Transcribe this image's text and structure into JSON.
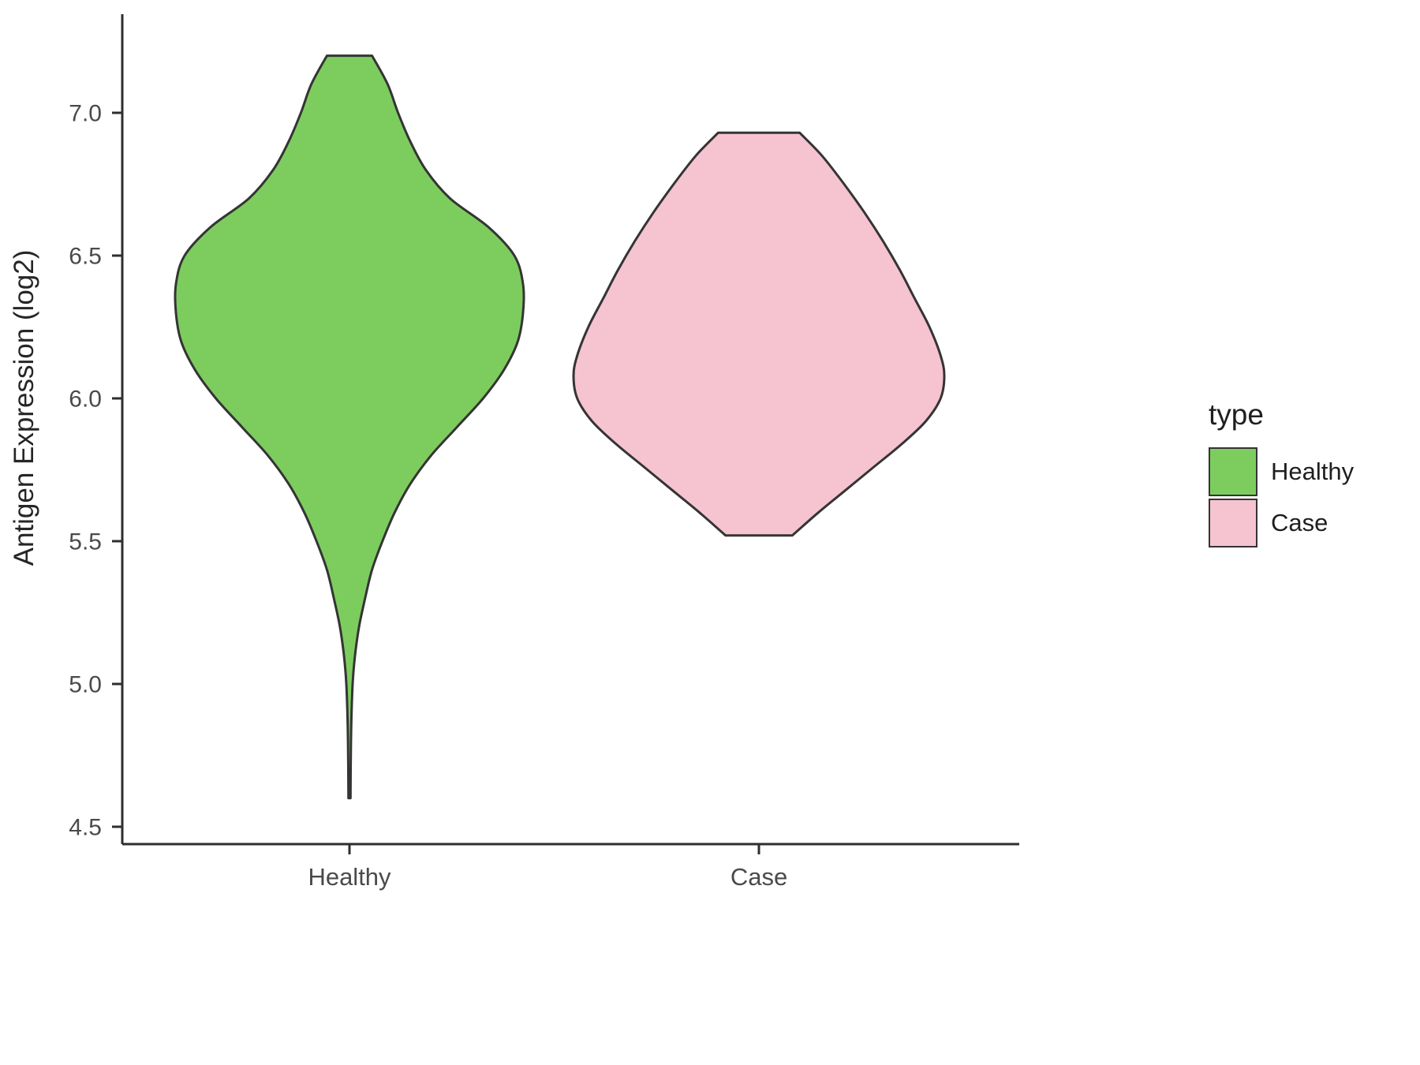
{
  "chart_data": {
    "type": "violin",
    "title": "",
    "xlabel": "",
    "ylabel": "Antigen Expression (log2)",
    "categories": [
      "Healthy",
      "Case"
    ],
    "ylim": [
      4.4,
      7.3
    ],
    "grid": false,
    "legend": {
      "title": "type",
      "position": "right",
      "entries": [
        {
          "label": "Healthy",
          "color": "#7DCD5E"
        },
        {
          "label": "Case",
          "color": "#F6C3D0"
        }
      ]
    },
    "y_ticks": [
      {
        "v": 4.5,
        "label": "4.5"
      },
      {
        "v": 5.0,
        "label": "5.0"
      },
      {
        "v": 5.5,
        "label": "5.5"
      },
      {
        "v": 6.0,
        "label": "6.0"
      },
      {
        "v": 6.5,
        "label": "6.5"
      },
      {
        "v": 7.0,
        "label": "7.0"
      }
    ],
    "series": [
      {
        "name": "Healthy",
        "fill": "#7DCD5E",
        "range": [
          4.6,
          7.2
        ],
        "peak_value": 6.35,
        "profile": [
          {
            "v": 7.2,
            "w": 0.13
          },
          {
            "v": 7.1,
            "w": 0.22
          },
          {
            "v": 7.0,
            "w": 0.28
          },
          {
            "v": 6.9,
            "w": 0.35
          },
          {
            "v": 6.8,
            "w": 0.44
          },
          {
            "v": 6.7,
            "w": 0.58
          },
          {
            "v": 6.6,
            "w": 0.8
          },
          {
            "v": 6.5,
            "w": 0.95
          },
          {
            "v": 6.4,
            "w": 1.0
          },
          {
            "v": 6.3,
            "w": 1.0
          },
          {
            "v": 6.2,
            "w": 0.97
          },
          {
            "v": 6.1,
            "w": 0.89
          },
          {
            "v": 6.0,
            "w": 0.77
          },
          {
            "v": 5.9,
            "w": 0.62
          },
          {
            "v": 5.8,
            "w": 0.47
          },
          {
            "v": 5.7,
            "w": 0.35
          },
          {
            "v": 5.6,
            "w": 0.26
          },
          {
            "v": 5.5,
            "w": 0.19
          },
          {
            "v": 5.4,
            "w": 0.13
          },
          {
            "v": 5.3,
            "w": 0.09
          },
          {
            "v": 5.2,
            "w": 0.055
          },
          {
            "v": 5.1,
            "w": 0.032
          },
          {
            "v": 5.0,
            "w": 0.018
          },
          {
            "v": 4.85,
            "w": 0.01
          },
          {
            "v": 4.7,
            "w": 0.007
          },
          {
            "v": 4.6,
            "w": 0.006
          }
        ]
      },
      {
        "name": "Case",
        "fill": "#F6C3D0",
        "range": [
          5.52,
          6.93
        ],
        "peak_value": 6.08,
        "profile": [
          {
            "v": 6.93,
            "w": 0.22
          },
          {
            "v": 6.85,
            "w": 0.34
          },
          {
            "v": 6.75,
            "w": 0.46
          },
          {
            "v": 6.65,
            "w": 0.57
          },
          {
            "v": 6.55,
            "w": 0.67
          },
          {
            "v": 6.45,
            "w": 0.76
          },
          {
            "v": 6.35,
            "w": 0.84
          },
          {
            "v": 6.25,
            "w": 0.92
          },
          {
            "v": 6.15,
            "w": 0.98
          },
          {
            "v": 6.08,
            "w": 1.0
          },
          {
            "v": 6.0,
            "w": 0.98
          },
          {
            "v": 5.92,
            "w": 0.9
          },
          {
            "v": 5.84,
            "w": 0.77
          },
          {
            "v": 5.76,
            "w": 0.62
          },
          {
            "v": 5.68,
            "w": 0.47
          },
          {
            "v": 5.6,
            "w": 0.32
          },
          {
            "v": 5.52,
            "w": 0.18
          }
        ]
      }
    ]
  }
}
